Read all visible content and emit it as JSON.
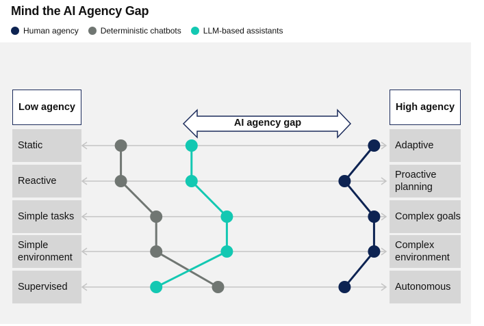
{
  "title": "Mind the AI Agency Gap",
  "colors": {
    "human": "#0d2352",
    "chatbot": "#707672",
    "llm": "#13c8b2",
    "arrow": "#c4c4c4",
    "panel": "#f2f2f2",
    "box": "#d6d6d6",
    "frame": "#1a2a5a"
  },
  "legend": [
    {
      "label": "Human agency",
      "color": "#0d2352"
    },
    {
      "label": "Deterministic chatbots",
      "color": "#707672"
    },
    {
      "label": "LLM-based assistants",
      "color": "#13c8b2"
    }
  ],
  "left_header": "Low agency",
  "right_header": "High agency",
  "gap_label": "AI agency gap",
  "chart_data": {
    "type": "line",
    "title": "Mind the AI Agency Gap",
    "orientation": "horizontal",
    "rows": [
      {
        "low": "Static",
        "high": "Adaptive"
      },
      {
        "low": "Reactive",
        "high": "Proactive planning"
      },
      {
        "low": "Simple tasks",
        "high": "Complex goals"
      },
      {
        "low": "Simple environment",
        "high": "Complex environment"
      },
      {
        "low": "Supervised",
        "high": "Autonomous"
      }
    ],
    "xlim": [
      0,
      1
    ],
    "series": [
      {
        "name": "Human agency",
        "values": [
          0.98,
          0.88,
          0.98,
          0.98,
          0.88
        ]
      },
      {
        "name": "Deterministic chatbots",
        "values": [
          0.12,
          0.12,
          0.24,
          0.24,
          0.45
        ]
      },
      {
        "name": "LLM-based assistants",
        "values": [
          0.36,
          0.36,
          0.48,
          0.48,
          0.24
        ]
      }
    ]
  }
}
